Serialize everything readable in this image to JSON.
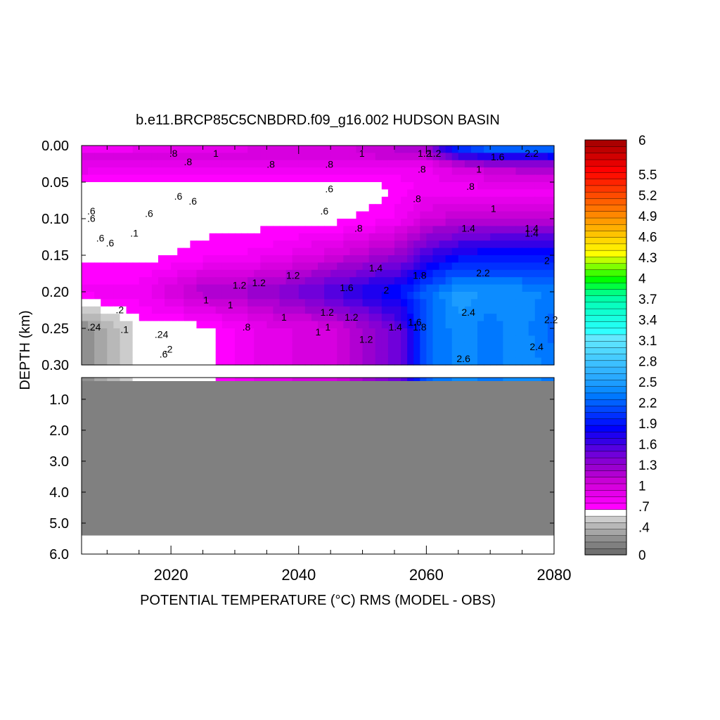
{
  "chart_data": {
    "type": "heatmap",
    "title": "b.e11.BRCP85C5CNBDRD.f09_g16.002 HUDSON BASIN",
    "xlabel": "POTENTIAL TEMPERATURE (°C) RMS (MODEL - OBS)",
    "ylabel": "DEPTH (km)",
    "xlim": [
      2006,
      2080
    ],
    "x_ticks": [
      "2020",
      "2040",
      "2060",
      "2080"
    ],
    "upper_panel": {
      "ylim": [
        0.0,
        0.3
      ],
      "y_ticks": [
        "0.00",
        "0.05",
        "0.10",
        "0.15",
        "0.20",
        "0.25",
        "0.30"
      ],
      "years": [
        2006,
        2015,
        2025,
        2035,
        2045,
        2052,
        2056,
        2060,
        2065,
        2070,
        2075,
        2080
      ],
      "depths": [
        0.0,
        0.01,
        0.03,
        0.06,
        0.1,
        0.15,
        0.2,
        0.25,
        0.3
      ],
      "rms": [
        [
          0.6,
          0.7,
          0.8,
          0.9,
          1.0,
          1.0,
          1.1,
          1.2,
          2.2,
          2.4,
          2.6,
          2.4
        ],
        [
          1.0,
          1.0,
          1.0,
          1.0,
          1.0,
          1.1,
          1.2,
          1.2,
          1.8,
          2.0,
          1.9,
          2.0
        ],
        [
          0.9,
          0.8,
          0.8,
          0.8,
          0.8,
          0.8,
          0.8,
          0.8,
          1.0,
          1.1,
          1.2,
          1.2
        ],
        [
          0.6,
          0.6,
          0.6,
          0.6,
          0.6,
          0.6,
          0.7,
          0.8,
          0.8,
          0.8,
          0.8,
          0.8
        ],
        [
          0.6,
          0.6,
          0.6,
          0.6,
          0.6,
          0.7,
          0.8,
          1.0,
          1.1,
          1.1,
          1.1,
          1.1
        ],
        [
          0.6,
          0.6,
          0.7,
          0.8,
          1.0,
          1.2,
          1.3,
          1.6,
          1.8,
          1.9,
          1.9,
          1.9
        ],
        [
          0.8,
          0.8,
          1.2,
          1.3,
          1.6,
          1.8,
          1.9,
          2.2,
          2.5,
          2.4,
          2.4,
          2.3
        ],
        [
          0.2,
          0.6,
          0.6,
          0.9,
          1.0,
          1.3,
          1.5,
          2.2,
          2.4,
          2.3,
          2.4,
          2.2
        ],
        [
          0.2,
          0.6,
          0.6,
          0.9,
          1.0,
          1.3,
          1.5,
          2.2,
          2.4,
          2.3,
          2.4,
          2.3
        ]
      ]
    },
    "lower_panel": {
      "ylim": [
        0.3,
        6.0
      ],
      "y_ticks": [
        "1.0",
        "2.0",
        "3.0",
        "4.0",
        "5.0",
        "6.0"
      ],
      "fill_value": 0.1,
      "bottom_depth": 5.4
    },
    "contour_labels": [
      ".8",
      ".1",
      ".6",
      ".8",
      ".6",
      ".8",
      ".1",
      ".6",
      "1.2",
      ".8",
      "1",
      ".8",
      "1",
      "1.2",
      "1",
      ".6",
      "1",
      ".8",
      "1",
      "1.2",
      "1.4",
      ".6",
      ".8",
      ".6",
      ".8",
      "1.2",
      "1.4",
      "1.6",
      "1.8",
      "2.2",
      "2.4",
      "2",
      "1.2",
      "1",
      "1.4",
      "1.6",
      "1.8",
      "2.6",
      "2.4",
      "2.2",
      ".8",
      "1.6",
      "1.4",
      "1.2",
      "1.4",
      "1.2",
      "1",
      "2.2",
      "2",
      "1",
      ".6",
      ".6",
      ".2",
      ".24",
      ".6",
      ".24",
      "1",
      ".6",
      "1.2",
      ".2"
    ],
    "colorbar": {
      "tick_labels": [
        "0",
        ".4",
        ".7",
        "1",
        "1.3",
        "1.6",
        "1.9",
        "2.2",
        "2.5",
        "2.8",
        "3.1",
        "3.4",
        "3.7",
        "4",
        "4.3",
        "4.6",
        "4.9",
        "5.2",
        "5.5",
        "6"
      ],
      "colors": [
        "#707070",
        "#808080",
        "#909090",
        "#a6a6a6",
        "#b8b8b8",
        "#cccccc",
        "#ffffff",
        "#ff00ff",
        "#f200f5",
        "#e500ea",
        "#d700df",
        "#c800d6",
        "#b100d2",
        "#9a00cf",
        "#8700d4",
        "#7000da",
        "#5400e0",
        "#3400e6",
        "#1e00f0",
        "#0000ff",
        "#0018ff",
        "#0030ff",
        "#0048ff",
        "#0060ff",
        "#0078ff",
        "#0c8cff",
        "#1c9cff",
        "#2aaaff",
        "#32b4ff",
        "#3cc0ff",
        "#46ccff",
        "#50d8ff",
        "#5ae0ff",
        "#64e8ff",
        "#30ffff",
        "#20fff0",
        "#18ffe0",
        "#10ffd0",
        "#08ffc0",
        "#00ffa8",
        "#00ff80",
        "#00ff40",
        "#00ff00",
        "#40ff00",
        "#80ff00",
        "#c0ff00",
        "#ffff00",
        "#ffeb00",
        "#ffd700",
        "#ffc300",
        "#ffaf00",
        "#ff9b00",
        "#ff8700",
        "#ff7300",
        "#ff5f00",
        "#ff4b00",
        "#ff3700",
        "#ff2300",
        "#ff0f00",
        "#ff0000",
        "#e60000",
        "#d20000",
        "#be0000",
        "#aa0000"
      ]
    }
  }
}
